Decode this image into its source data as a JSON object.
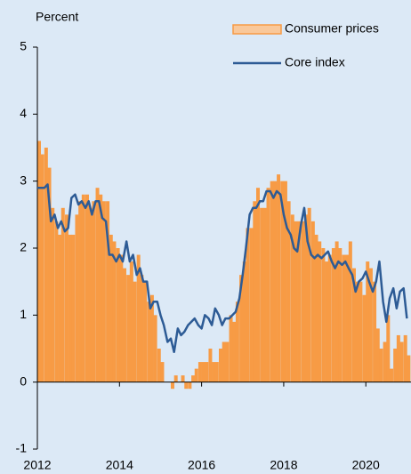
{
  "chart_data": {
    "type": "bar",
    "ylabel": "Percent",
    "legend": "upper right",
    "grid": false,
    "x": [
      2012.0,
      2012.08,
      2012.17,
      2012.25,
      2012.33,
      2012.42,
      2012.5,
      2012.58,
      2012.67,
      2012.75,
      2012.83,
      2012.92,
      2013.0,
      2013.08,
      2013.17,
      2013.25,
      2013.33,
      2013.42,
      2013.5,
      2013.58,
      2013.67,
      2013.75,
      2013.83,
      2013.92,
      2014.0,
      2014.08,
      2014.17,
      2014.25,
      2014.33,
      2014.42,
      2014.5,
      2014.58,
      2014.67,
      2014.75,
      2014.83,
      2014.92,
      2015.0,
      2015.08,
      2015.17,
      2015.25,
      2015.33,
      2015.42,
      2015.5,
      2015.58,
      2015.67,
      2015.75,
      2015.83,
      2015.92,
      2016.0,
      2016.08,
      2016.17,
      2016.25,
      2016.33,
      2016.42,
      2016.5,
      2016.58,
      2016.67,
      2016.75,
      2016.83,
      2016.92,
      2017.0,
      2017.08,
      2017.17,
      2017.25,
      2017.33,
      2017.42,
      2017.5,
      2017.58,
      2017.67,
      2017.75,
      2017.83,
      2017.92,
      2018.0,
      2018.08,
      2018.17,
      2018.25,
      2018.33,
      2018.42,
      2018.5,
      2018.58,
      2018.67,
      2018.75,
      2018.83,
      2018.92,
      2019.0,
      2019.08,
      2019.17,
      2019.25,
      2019.33,
      2019.42,
      2019.5,
      2019.58,
      2019.67,
      2019.75,
      2019.83,
      2019.92,
      2020.0,
      2020.08,
      2020.17,
      2020.25,
      2020.33,
      2020.42,
      2020.5,
      2020.58,
      2020.67,
      2020.75,
      2020.83,
      2020.92,
      2021.0
    ],
    "series": [
      {
        "name": "Consumer prices",
        "type": "bar",
        "color": "#f79b45",
        "values": [
          3.6,
          3.4,
          3.5,
          3.2,
          2.6,
          2.4,
          2.2,
          2.6,
          2.5,
          2.2,
          2.2,
          2.5,
          2.7,
          2.8,
          2.8,
          2.6,
          2.7,
          2.9,
          2.8,
          2.7,
          2.7,
          2.2,
          2.1,
          2.0,
          1.9,
          1.7,
          1.6,
          1.8,
          1.5,
          1.9,
          1.6,
          1.5,
          1.2,
          1.3,
          1.0,
          0.5,
          0.3,
          0.0,
          0.0,
          -0.1,
          0.1,
          0.0,
          0.1,
          -0.1,
          -0.1,
          0.1,
          0.2,
          0.3,
          0.3,
          0.3,
          0.5,
          0.3,
          0.3,
          0.5,
          0.6,
          0.6,
          1.0,
          0.9,
          1.2,
          1.6,
          1.8,
          2.3,
          2.3,
          2.7,
          2.9,
          2.6,
          2.6,
          2.9,
          3.0,
          3.0,
          3.1,
          3.0,
          3.0,
          2.7,
          2.5,
          2.4,
          2.4,
          2.4,
          2.5,
          2.6,
          2.4,
          2.2,
          2.1,
          2.0,
          1.8,
          1.9,
          2.0,
          2.1,
          2.0,
          1.9,
          1.9,
          2.1,
          1.7,
          1.5,
          1.5,
          1.3,
          1.8,
          1.7,
          1.5,
          0.8,
          0.5,
          0.6,
          1.0,
          0.2,
          0.5,
          0.7,
          0.6,
          0.7,
          0.4
        ]
      },
      {
        "name": "Core index",
        "type": "line",
        "color": "#2d5b95",
        "values": [
          2.9,
          2.9,
          2.9,
          2.95,
          2.4,
          2.5,
          2.3,
          2.4,
          2.25,
          2.3,
          2.75,
          2.8,
          2.65,
          2.7,
          2.6,
          2.7,
          2.5,
          2.7,
          2.7,
          2.45,
          2.4,
          1.9,
          1.9,
          1.8,
          1.9,
          1.8,
          2.1,
          1.8,
          1.9,
          1.6,
          1.7,
          1.5,
          1.5,
          1.1,
          1.2,
          1.2,
          1.0,
          0.85,
          0.6,
          0.65,
          0.45,
          0.8,
          0.7,
          0.75,
          0.85,
          0.9,
          0.95,
          0.85,
          0.8,
          1.0,
          0.95,
          0.85,
          1.1,
          1.0,
          0.85,
          0.95,
          0.95,
          1.0,
          1.05,
          1.25,
          1.6,
          2.0,
          2.5,
          2.6,
          2.6,
          2.7,
          2.7,
          2.85,
          2.85,
          2.75,
          2.85,
          2.8,
          2.5,
          2.3,
          2.2,
          2.0,
          1.95,
          2.35,
          2.6,
          2.1,
          1.9,
          1.85,
          1.9,
          1.85,
          1.9,
          1.95,
          1.8,
          1.7,
          1.8,
          1.75,
          1.8,
          1.7,
          1.6,
          1.35,
          1.5,
          1.55,
          1.65,
          1.5,
          1.35,
          1.5,
          1.8,
          1.2,
          0.9,
          1.25,
          1.4,
          1.1,
          1.35,
          1.4,
          0.95
        ]
      }
    ],
    "xlim": [
      2012,
      2021.1
    ],
    "xticks": [
      2012,
      2014,
      2016,
      2018,
      2020
    ],
    "ylim": [
      -1,
      5
    ],
    "yticks": [
      -1,
      0,
      1,
      2,
      3,
      4,
      5
    ]
  }
}
